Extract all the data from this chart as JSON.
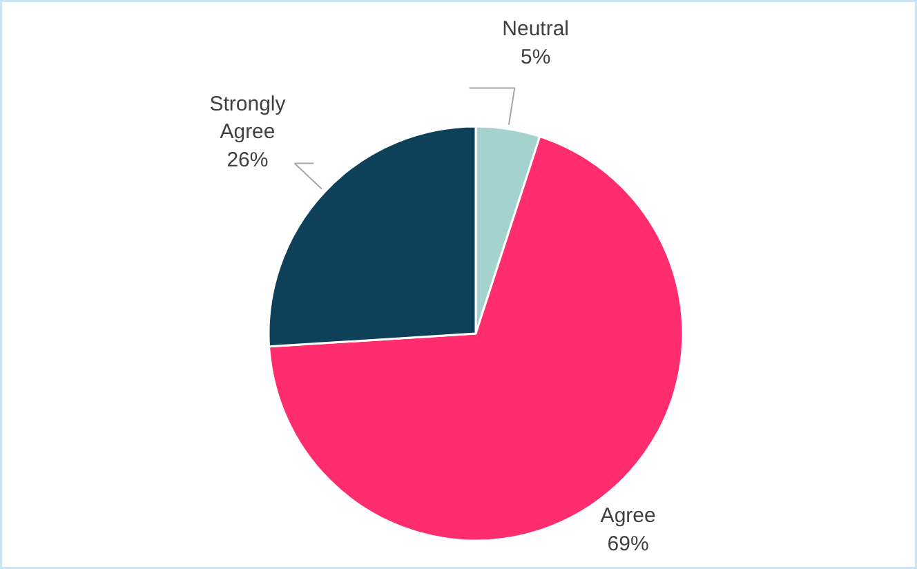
{
  "chart_data": {
    "type": "pie",
    "categories": [
      "Neutral",
      "Agree",
      "Strongly Agree"
    ],
    "values": [
      5,
      69,
      26
    ],
    "colors": [
      "#a3d2cf",
      "#ff2d6e",
      "#0e4159"
    ],
    "value_labels": [
      "5%",
      "69%",
      "26%"
    ]
  }
}
